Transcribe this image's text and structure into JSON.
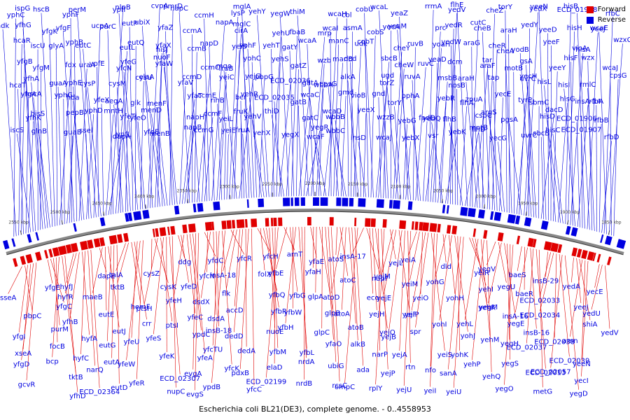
{
  "caption": "Escherichia coli BL21(DE3), complete genome. - 0..4558953",
  "legend": {
    "forward_label": "Forward",
    "reverse_label": "Reverse",
    "forward_color": "#e00000",
    "reverse_color": "#0000e0"
  },
  "scale_ticks": [
    "2550 kbp",
    "2500 kbp",
    "2450 kbp",
    "2400 kbp",
    "2350 kbp",
    "2300 kbp",
    "2250 kbp",
    "2200 kbp",
    "2150 kbp",
    "2100 kbp",
    "2050 kbp",
    "2000 kbp",
    "1950 kbp",
    "1900 kbp",
    "1850 kbp"
  ],
  "reverse_genes": [
    "yphC",
    "ndk",
    "hcaR",
    "yfgB",
    "hcaT",
    "yfgA",
    "yfhK",
    "iscS",
    "ispG",
    "yfhG",
    "iscU",
    "yfgM",
    "yfhA",
    "hscA",
    "hisS",
    "glnB",
    "hscB",
    "yfgK",
    "glyA",
    "fdx",
    "guaA",
    "yphG",
    "pepB",
    "guaB",
    "yphF",
    "yfgF",
    "yphB",
    "uraA",
    "yphE",
    "hda",
    "yphD",
    "ssel",
    "perM",
    "ucpA",
    "eutC",
    "ypfE",
    "cysP",
    "yfeX",
    "mntH",
    "dapA",
    "nlpB",
    "purC",
    "eutL",
    "yfeG",
    "cysM",
    "aegA",
    "yfeT",
    "ypfL",
    "ypfI",
    "eutP",
    "eutQ",
    "yfcN",
    "cysU",
    "glk",
    "yfeO",
    "yfdE",
    "cvpA",
    "ubiX",
    "hisJ",
    "nuoF",
    "elaA",
    "menF",
    "menD",
    "menB",
    "pmrD",
    "yfaZ",
    "yfaX",
    "yfaW",
    "yfaV",
    "yfaT",
    "napH",
    "napB",
    "napC",
    "ccmA",
    "ccmB",
    "ccmC",
    "ccmD",
    "ccmE",
    "ccmF",
    "ccmG",
    "ccmH",
    "napA",
    "napD",
    "fruB",
    "yeiC",
    "rihB",
    "yeiL",
    "yeiE",
    "lysP",
    "cirA",
    "yeiB",
    "mqo",
    "yejG",
    "bcr",
    "fruK",
    "fruA",
    "mglA",
    "mglC",
    "yohF",
    "yohC",
    "pbpG",
    "yehR",
    "yehV",
    "yehX",
    "yehY",
    "yehU",
    "yehT",
    "yehS",
    "ECD_02036",
    "ECD_02035",
    "thiD",
    "yegX",
    "yegW",
    "fbaB",
    "gatY",
    "gatZ",
    "gatA",
    "gatB",
    "gatC",
    "yegR",
    "thiM",
    "mrp",
    "wcaA",
    "wzb",
    "wbbA",
    "wcaC",
    "wcaD",
    "wcaF",
    "wcaH",
    "wcaI",
    "manC",
    "manB",
    "cpsG",
    "gmd",
    "wbbB",
    "wbbC",
    "cbl",
    "asmA",
    "udk",
    "dcd",
    "alkA",
    "vioB",
    "yeeX",
    "insD",
    "cobU",
    "cobS",
    "cobT",
    "sbcB",
    "ugd",
    "gnd",
    "wzzB",
    "wcaJ",
    "wcaL",
    "yecA",
    "cheY",
    "cheW",
    "torZ",
    "torY",
    "yebG",
    "yebX",
    "yeaZ",
    "yeaM",
    "ruvB",
    "ruvC",
    "ruvA",
    "pphA",
    "fadD",
    "vsr",
    "rrmA",
    "prc",
    "yoaH",
    "yeaD",
    "msbB",
    "yebR",
    "yebQ",
    "yebK",
    "yedV",
    "yedR",
    "yedW",
    "dcm",
    "nosB",
    "flhA",
    "flhB",
    "flhD",
    "flhE",
    "cutC",
    "araG",
    "araF",
    "araH",
    "znuA",
    "cspC",
    "motB",
    "cheZ",
    "cheB",
    "cheR",
    "tar",
    "tap",
    "yecE",
    "argS",
    "yecG",
    "torY",
    "araH",
    "cheA",
    "motB",
    "yecH",
    "tyrP",
    "pgsA",
    "uvrC",
    "yedX",
    "yedY",
    "yodB",
    "gsA",
    "uvrC",
    "sbmC",
    "dacD",
    "sbcB",
    "yeeN",
    "yeeD",
    "yeeF",
    "yeeY",
    "hisL",
    "hisG",
    "hisD",
    "hisC",
    "hisB",
    "hisH",
    "hisA",
    "hisF",
    "hisI",
    "insA-14",
    "ECD_01906",
    "ECD_01907",
    "ECD_01908",
    "yeeJ",
    "vioA",
    "wzx",
    "rmlC",
    "rfbA",
    "rfbB",
    "rfbD",
    "rfbC",
    "wcaE",
    "wzxC",
    "wcaJ",
    "cpsG"
  ],
  "forward_genes": [
    "sseA",
    "pbpC",
    "yfgI",
    "xseA",
    "yfgD",
    "gcvR",
    "purN",
    "ppk",
    "ppx",
    "yfgE",
    "yfgC",
    "purM",
    "focB",
    "bcp",
    "tktB",
    "yfhD",
    "hyfH",
    "hyfI",
    "hyfJ",
    "hyfR",
    "yfhB",
    "hyfA",
    "hyfC",
    "narQ",
    "ECD_02364",
    "acrD",
    "yffB",
    "dapE",
    "maeB",
    "eutE",
    "eutJ",
    "eutG",
    "eutA",
    "eutD",
    "eutN",
    "eutQ",
    "talA",
    "tktB",
    "hemF",
    "crr",
    "yfeU",
    "yfeW",
    "yfeR",
    "ypeA",
    "amiA",
    "cysZ",
    "cysK",
    "ptsH",
    "ptsI",
    "yfeS",
    "yfeK",
    "ECD_02307",
    "nupC",
    "ypdI",
    "ddg",
    "yfeD",
    "yfeH",
    "yfeC",
    "ypdC",
    "yfeA",
    "evgA",
    "evgS",
    "fadL",
    "yfdC",
    "yfcN",
    "dsdX",
    "dsdA",
    "insB-18",
    "yfcTU",
    "yfcK",
    "ypdB",
    "mepA",
    "yfcR",
    "insA-18",
    "flk",
    "accD",
    "dedD",
    "dedA",
    "pdxB",
    "yfcC",
    "yfcG",
    "yfcH",
    "folX",
    "yfbQ",
    "yfbR",
    "nuoE",
    "yfbM",
    "elaD",
    "ECD_02199",
    "ECD_02200",
    "arnT",
    "yfbE",
    "yfbG",
    "yfbW",
    "yfbH",
    "yfbL",
    "nrdA",
    "nrdB",
    "yfaD",
    "yfaE",
    "yfaH",
    "glpA",
    "glpB",
    "glpC",
    "yfaO",
    "ubiG",
    "rcsC",
    "atoE",
    "atoS",
    "atoC",
    "atoD",
    "atoA",
    "atoB",
    "alkB",
    "ada",
    "ompC",
    "insB-17",
    "insA-17",
    "napF",
    "eco",
    "yejH",
    "yejO",
    "narP",
    "yejP",
    "rplY",
    "yejK",
    "yejL",
    "yejM",
    "yejE",
    "yejF",
    "yejB",
    "yejA",
    "rtn",
    "yejU",
    "setB",
    "yeiA",
    "yeiM",
    "yeiO",
    "yeiP",
    "spr",
    "yeiS",
    "nfo",
    "yeiI",
    "yeiG",
    "dld",
    "yohG",
    "yohH",
    "yohI",
    "yohJ",
    "yohK",
    "sanA",
    "yeiU",
    "yeiT",
    "yeiR",
    "yehI",
    "yehK",
    "yehL",
    "yehM",
    "yehP",
    "yehQ",
    "yehR",
    "yegT",
    "yegV",
    "yegU",
    "yegM",
    "yegE",
    "yegH",
    "yegS",
    "yegO",
    "yegP",
    "yegQ",
    "baeS",
    "baeR",
    "insA-16",
    "insB-16",
    "ECD_02037",
    "ECD_02013",
    "metG",
    "molR",
    "insA-29",
    "insB-29",
    "ECD_02033",
    "ECD_02034",
    "ECD_02038",
    "ECD_02039",
    "ECD_02057",
    "yegD",
    "yegL",
    "yegN",
    "yedA",
    "yeeJ",
    "shiA",
    "amn",
    "yeeN",
    "yecI",
    "yecJ",
    "ftn",
    "yecR",
    "yecE",
    "yedU",
    "yedV"
  ]
}
